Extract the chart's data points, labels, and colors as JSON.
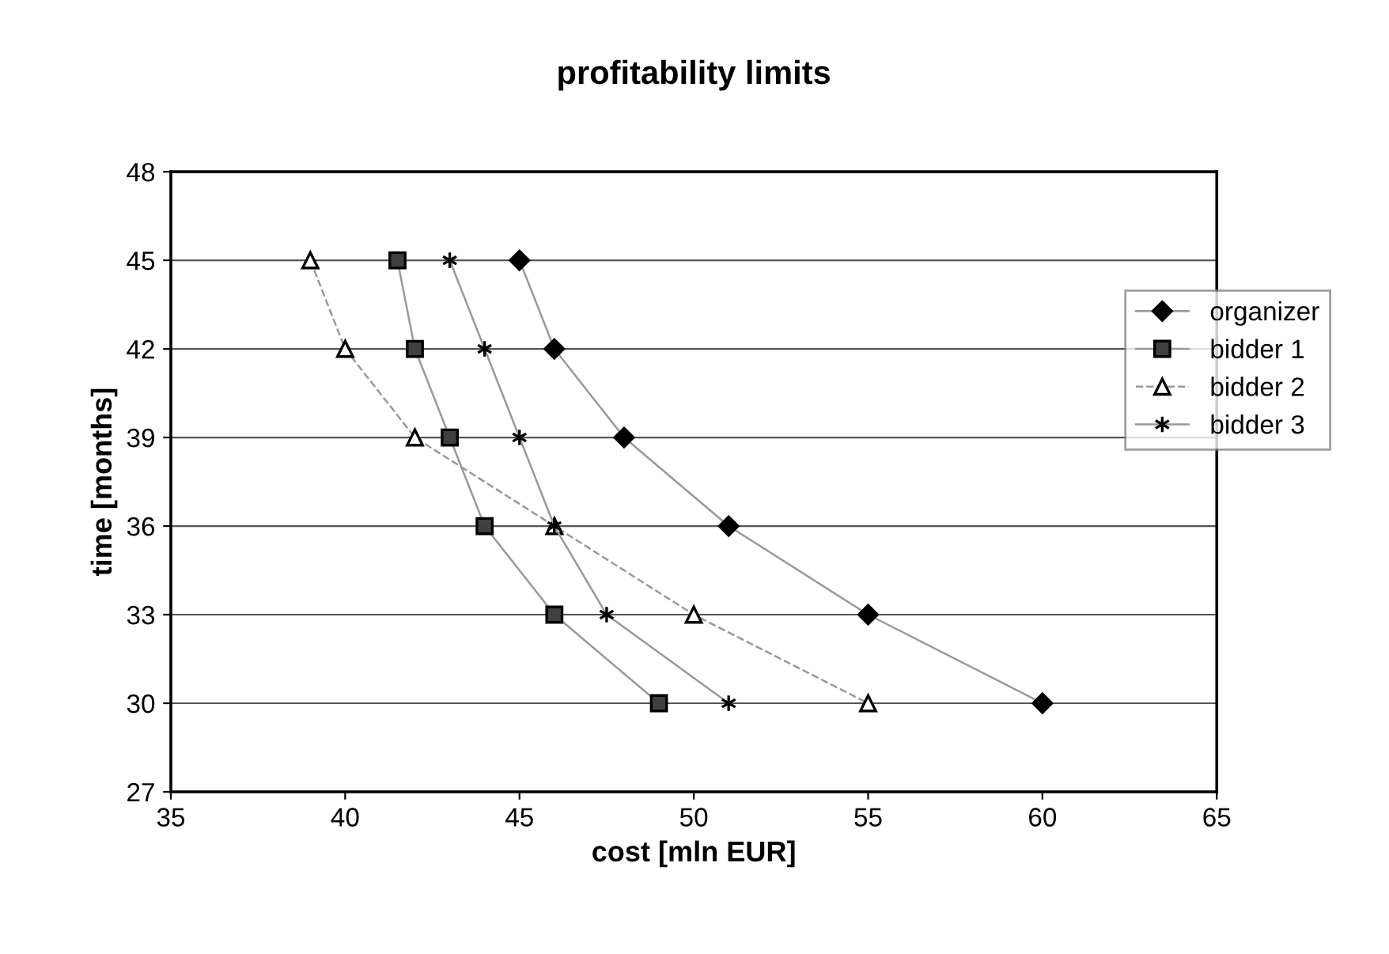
{
  "chart_data": {
    "type": "line",
    "title": "profitability limits",
    "xlabel": "cost [mln EUR]",
    "ylabel": "time [months]",
    "xlim": [
      35,
      65
    ],
    "xticks": [
      35,
      40,
      45,
      50,
      55,
      60,
      65
    ],
    "ylim": [
      27,
      48
    ],
    "yticks": [
      27,
      30,
      33,
      36,
      39,
      42,
      45,
      48
    ],
    "grid": "y",
    "legend": "right",
    "series": [
      {
        "name": "organizer",
        "color": "#000000",
        "marker": "diamond",
        "line_style": "solid",
        "x": [
          45,
          46,
          48,
          51,
          55,
          60
        ],
        "values": [
          45,
          42,
          39,
          36,
          33,
          30
        ]
      },
      {
        "name": "bidder 1",
        "color": "#404040",
        "marker": "square",
        "line_style": "solid",
        "x": [
          41.5,
          42,
          43,
          44,
          46,
          49
        ],
        "values": [
          45,
          42,
          39,
          36,
          33,
          30
        ]
      },
      {
        "name": "bidder 2",
        "color": "#ffffff",
        "marker": "triangle",
        "line_style": "dashed",
        "x": [
          39,
          40,
          42,
          46,
          50,
          55
        ],
        "values": [
          45,
          42,
          39,
          36,
          33,
          30
        ]
      },
      {
        "name": "bidder 3",
        "color": "#000000",
        "marker": "cross",
        "line_style": "solid",
        "x": [
          43,
          44,
          45,
          46,
          47.5,
          51
        ],
        "values": [
          45,
          42,
          39,
          36,
          33,
          30
        ]
      }
    ]
  }
}
